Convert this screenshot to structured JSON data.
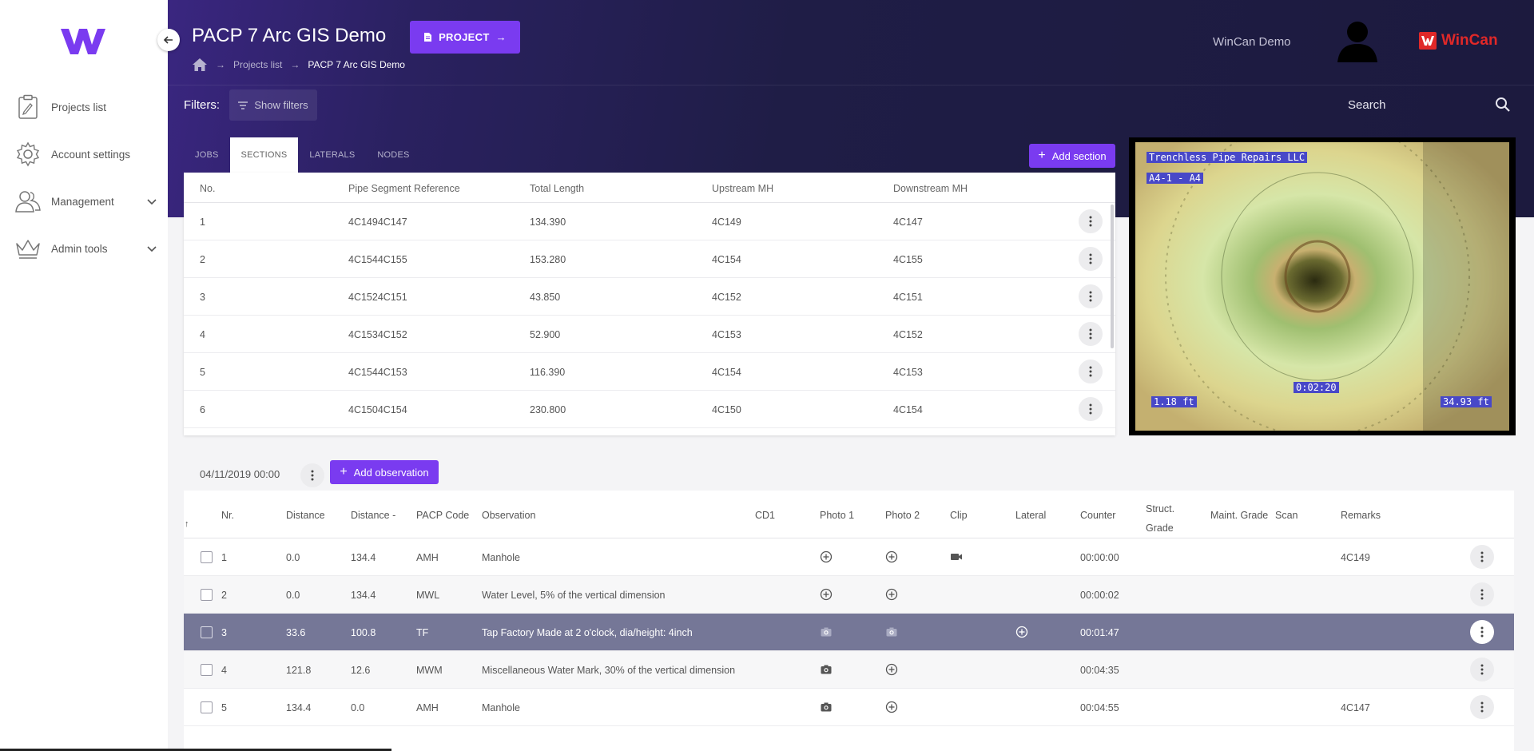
{
  "app": {
    "project_title": "PACP 7 Arc GIS Demo",
    "project_button": "PROJECT",
    "breadcrumb": [
      "Projects list",
      "PACP 7 Arc GIS Demo"
    ],
    "user_name": "WinCan Demo",
    "brand": "WinCan",
    "colors": {
      "accent": "#7a3bf0",
      "header_bg": "#1f1d46",
      "selected_row": "#757797",
      "brand_red": "#e02828"
    }
  },
  "sidebar": {
    "items": [
      {
        "label": "Projects list",
        "icon": "clipboard-icon"
      },
      {
        "label": "Account settings",
        "icon": "gear-icon"
      },
      {
        "label": "Management",
        "icon": "users-icon",
        "expandable": true
      },
      {
        "label": "Admin tools",
        "icon": "crown-icon",
        "expandable": true
      }
    ]
  },
  "filters": {
    "label": "Filters:",
    "button": "Show filters"
  },
  "search": {
    "label": "Search"
  },
  "tabs": [
    {
      "label": "JOBS",
      "active": false
    },
    {
      "label": "SECTIONS",
      "active": true
    },
    {
      "label": "LATERALS",
      "active": false
    },
    {
      "label": "NODES",
      "active": false
    }
  ],
  "add_section_label": "Add section",
  "sections": {
    "columns": [
      "No.",
      "Pipe Segment Reference",
      "Total Length",
      "Upstream MH",
      "Downstream MH"
    ],
    "rows": [
      [
        "1",
        "4C1494C147",
        "134.390",
        "4C149",
        "4C147"
      ],
      [
        "2",
        "4C1544C155",
        "153.280",
        "4C154",
        "4C155"
      ],
      [
        "3",
        "4C1524C151",
        "43.850",
        "4C152",
        "4C151"
      ],
      [
        "4",
        "4C1534C152",
        "52.900",
        "4C153",
        "4C152"
      ],
      [
        "5",
        "4C1544C153",
        "116.390",
        "4C154",
        "4C153"
      ],
      [
        "6",
        "4C1504C154",
        "230.800",
        "4C150",
        "4C154"
      ]
    ]
  },
  "video": {
    "company": "Trenchless Pipe Repairs LLC",
    "segment": "A4-1 - A4",
    "time": "0:02:20",
    "left_distance": "1.18 ft",
    "right_distance": "34.93 ft"
  },
  "observations": {
    "date": "04/11/2019 00:00",
    "add_label": "Add observation",
    "columns": {
      "nr": "Nr.",
      "distance": "Distance",
      "distance_rev": "Distance -",
      "pacp": "PACP Code",
      "observation": "Observation",
      "cd1": "CD1",
      "photo1": "Photo 1",
      "photo2": "Photo 2",
      "clip": "Clip",
      "lateral": "Lateral",
      "counter": "Counter",
      "struct1": "Struct.",
      "struct2": "Grade",
      "maint": "Maint. Grade",
      "scan": "Scan",
      "remarks": "Remarks"
    },
    "rows": [
      {
        "nr": "1",
        "distance": "0.0",
        "distance_rev": "134.4",
        "pacp": "AMH",
        "observation": "Manhole",
        "counter": "00:00:00",
        "remarks": "4C149",
        "photo1": "plus",
        "photo2": "plus",
        "clip": true,
        "lateral": false,
        "selected": false
      },
      {
        "nr": "2",
        "distance": "0.0",
        "distance_rev": "134.4",
        "pacp": "MWL",
        "observation": "Water Level, 5% of the vertical dimension",
        "counter": "00:00:02",
        "remarks": "",
        "photo1": "plus",
        "photo2": "plus",
        "clip": false,
        "lateral": false,
        "selected": false
      },
      {
        "nr": "3",
        "distance": "33.6",
        "distance_rev": "100.8",
        "pacp": "TF",
        "observation": "Tap Factory Made at 2 o'clock, dia/height: 4inch",
        "counter": "00:01:47",
        "remarks": "",
        "photo1": "camera",
        "photo2": "camera",
        "clip": false,
        "lateral": true,
        "selected": true
      },
      {
        "nr": "4",
        "distance": "121.8",
        "distance_rev": "12.6",
        "pacp": "MWM",
        "observation": "Miscellaneous Water Mark, 30% of the vertical dimension",
        "counter": "00:04:35",
        "remarks": "",
        "photo1": "camera",
        "photo2": "plus",
        "clip": false,
        "lateral": false,
        "selected": false
      },
      {
        "nr": "5",
        "distance": "134.4",
        "distance_rev": "0.0",
        "pacp": "AMH",
        "observation": "Manhole",
        "counter": "00:04:55",
        "remarks": "4C147",
        "photo1": "camera",
        "photo2": "plus",
        "clip": false,
        "lateral": false,
        "selected": false
      }
    ]
  }
}
